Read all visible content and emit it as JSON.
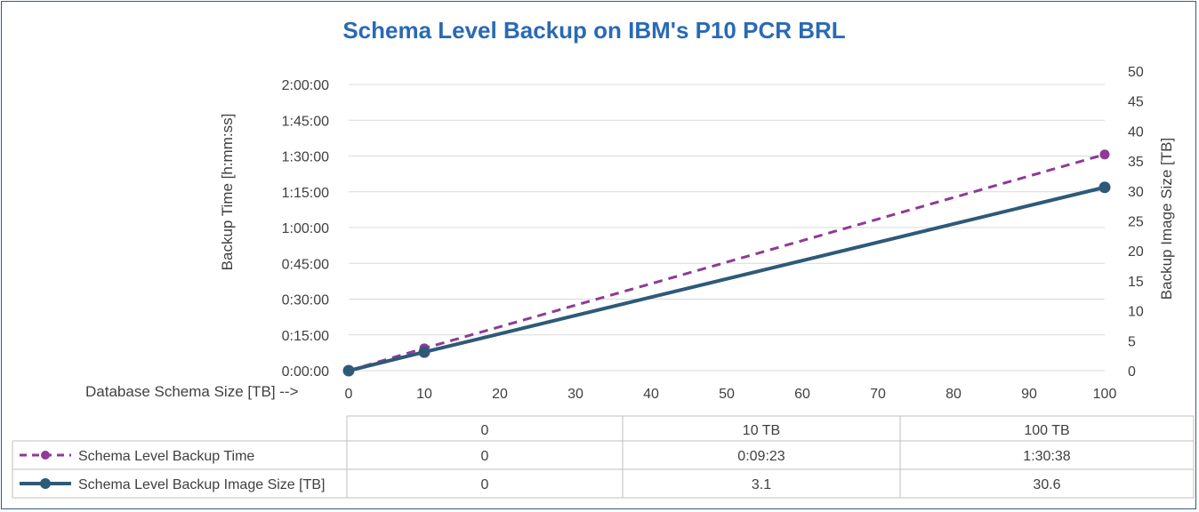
{
  "chart_data": {
    "type": "line",
    "title": "Schema Level Backup on IBM's P10 PCR BRL",
    "xlabel": "Database Schema Size [TB] -->",
    "ylabel_left": "Backup Time [h:mm:ss]",
    "ylabel_right": "Backup Image Size [TB]",
    "x_ticks": [
      "0",
      "10",
      "20",
      "30",
      "40",
      "50",
      "60",
      "70",
      "80",
      "90",
      "100"
    ],
    "y_left_ticks": [
      "0:00:00",
      "0:15:00",
      "0:30:00",
      "0:45:00",
      "1:00:00",
      "1:15:00",
      "1:30:00",
      "1:45:00",
      "2:00:00"
    ],
    "y_right_ticks": [
      "0",
      "5",
      "10",
      "15",
      "20",
      "25",
      "30",
      "35",
      "40",
      "45",
      "50"
    ],
    "xlim": [
      0,
      100
    ],
    "ylim_left_minutes": [
      0,
      120
    ],
    "ylim_right": [
      0,
      50
    ],
    "series": [
      {
        "name": "Schema Level Backup Time",
        "axis": "left",
        "style": "dashed-markers",
        "color": "#8e3a96",
        "x": [
          0,
          10,
          100
        ],
        "y_minutes": [
          0,
          9.383,
          90.633
        ],
        "labels": [
          "0",
          "0:09:23",
          "1:30:38"
        ]
      },
      {
        "name": "Schema Level Backup Image Size [TB]",
        "axis": "right",
        "style": "solid-markers",
        "color": "#2e5a78",
        "x": [
          0,
          10,
          100
        ],
        "y": [
          0,
          3.1,
          30.6
        ],
        "labels": [
          "0",
          "3.1",
          "30.6"
        ]
      }
    ],
    "table": {
      "header": [
        "0",
        "10 TB",
        "100 TB"
      ]
    },
    "grid": true,
    "legend": "data-table"
  }
}
